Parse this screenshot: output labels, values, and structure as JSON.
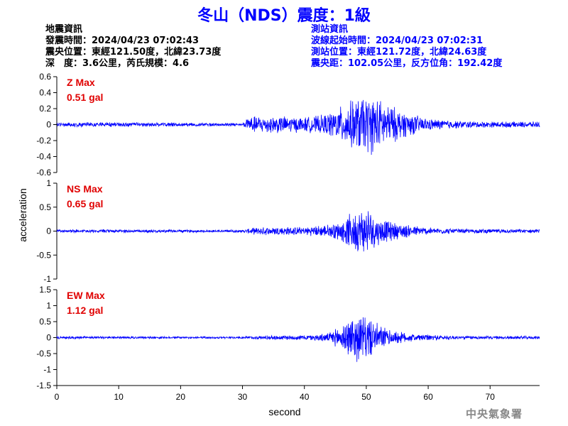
{
  "title": "冬山（NDS）震度：1級",
  "quake_info": {
    "heading": "地震資訊",
    "time": "發震時間：2024/04/23 07:02:43",
    "location": "震央位置：東經121.50度，北緯23.73度",
    "depth_mag": "深　度：3.6公里，芮氏規模：4.6"
  },
  "station_info": {
    "heading": "測站資訊",
    "wave_start": "波線起始時間：2024/04/23 07:02:31",
    "location": "測站位置：東經121.72度，北緯24.63度",
    "distance": "震央距：102.05公里，反方位角：192.42度"
  },
  "agency": "中央氣象署",
  "colors": {
    "trace": "#0000ff",
    "max_label": "#e00000",
    "title": "#0000ff"
  },
  "chart_data": {
    "type": "line",
    "xlabel": "second",
    "ylabel": "acceleration",
    "xlim": [
      0,
      78
    ],
    "xticks": [
      0,
      10,
      20,
      30,
      40,
      50,
      60,
      70
    ],
    "panels": [
      {
        "name": "Z",
        "max_label": "Z Max",
        "max_value": "0.51 gal",
        "ylim": [
          -0.6,
          0.6
        ],
        "yticks": [
          -0.6,
          -0.4,
          -0.2,
          0,
          0.2,
          0.4,
          0.6
        ],
        "ytick_labels": [
          "-0.6",
          "-0.4",
          "-0.2",
          "0",
          "0.2",
          "0.4",
          "0.6"
        ],
        "envelope": [
          [
            0,
            0.03
          ],
          [
            10,
            0.03
          ],
          [
            20,
            0.025
          ],
          [
            30,
            0.02
          ],
          [
            31,
            0.11
          ],
          [
            35,
            0.12
          ],
          [
            40,
            0.1
          ],
          [
            43,
            0.13
          ],
          [
            45,
            0.2
          ],
          [
            47,
            0.3
          ],
          [
            49,
            0.38
          ],
          [
            51,
            0.4
          ],
          [
            53,
            0.3
          ],
          [
            56,
            0.18
          ],
          [
            60,
            0.08
          ],
          [
            65,
            0.05
          ],
          [
            70,
            0.04
          ],
          [
            78,
            0.04
          ]
        ]
      },
      {
        "name": "NS",
        "max_label": "NS Max",
        "max_value": "0.65 gal",
        "ylim": [
          -1,
          1
        ],
        "yticks": [
          -1,
          -0.5,
          0,
          0.5,
          1
        ],
        "ytick_labels": [
          "-1",
          "-0.5",
          "0",
          "0.5",
          "1"
        ],
        "envelope": [
          [
            0,
            0.04
          ],
          [
            10,
            0.035
          ],
          [
            20,
            0.03
          ],
          [
            30,
            0.03
          ],
          [
            32,
            0.08
          ],
          [
            36,
            0.1
          ],
          [
            40,
            0.09
          ],
          [
            44,
            0.15
          ],
          [
            46,
            0.22
          ],
          [
            48,
            0.45
          ],
          [
            50,
            0.55
          ],
          [
            52,
            0.3
          ],
          [
            55,
            0.18
          ],
          [
            60,
            0.08
          ],
          [
            65,
            0.05
          ],
          [
            78,
            0.04
          ]
        ]
      },
      {
        "name": "EW",
        "max_label": "EW Max",
        "max_value": "1.12 gal",
        "ylim": [
          -1.5,
          1.5
        ],
        "yticks": [
          -1.5,
          -1,
          -0.5,
          0,
          0.5,
          1,
          1.5
        ],
        "ytick_labels": [
          "-1.5",
          "-1",
          "-0.5",
          "0",
          "0.5",
          "1",
          "1.5"
        ],
        "envelope": [
          [
            0,
            0.05
          ],
          [
            10,
            0.04
          ],
          [
            20,
            0.035
          ],
          [
            30,
            0.035
          ],
          [
            32,
            0.06
          ],
          [
            36,
            0.08
          ],
          [
            40,
            0.08
          ],
          [
            44,
            0.15
          ],
          [
            46,
            0.45
          ],
          [
            48,
            0.8
          ],
          [
            50,
            0.75
          ],
          [
            52,
            0.45
          ],
          [
            54,
            0.25
          ],
          [
            58,
            0.12
          ],
          [
            65,
            0.06
          ],
          [
            78,
            0.05
          ]
        ]
      }
    ]
  }
}
